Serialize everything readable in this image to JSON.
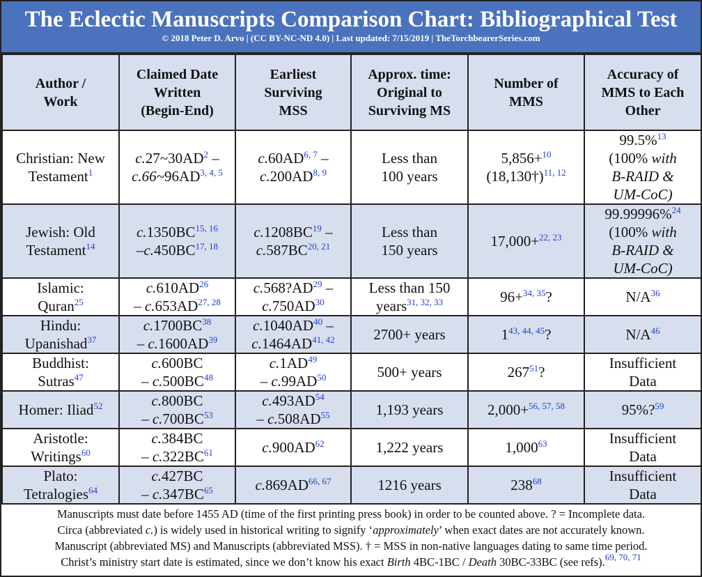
{
  "header": {
    "title": "The Eclectic Manuscripts Comparison Chart: Bibliographical Test",
    "subtitle": "© 2018 Peter D. Arvo | (CC BY-NC-ND 4.0) | Last updated: 7/15/2019 | TheTorchbearerSeries.com"
  },
  "table": {
    "columns": [
      [
        "Author /",
        "Work"
      ],
      [
        "Claimed Date",
        "Written",
        "(Begin-End)"
      ],
      [
        "Earliest",
        "Surviving",
        "MSS"
      ],
      [
        "Approx. time:",
        "Original to",
        "Surviving MS"
      ],
      [
        "Number of",
        "MMS"
      ],
      [
        "Accuracy of",
        "MMS to Each",
        "Other"
      ]
    ],
    "rows": [
      [
        [
          [
            "Christian: New"
          ],
          [
            "Testament",
            {
              "sup": "1"
            }
          ]
        ],
        [
          [
            {
              "i": "c."
            },
            "27~30AD",
            {
              "sup": "2"
            },
            " –"
          ],
          [
            {
              "i": "c.66~"
            },
            "96AD",
            {
              "sup": "3, 4, 5"
            }
          ]
        ],
        [
          [
            {
              "i": "c."
            },
            "60AD",
            {
              "sup": "6, 7"
            },
            " –"
          ],
          [
            {
              "i": "c."
            },
            "200AD",
            {
              "sup": "8, 9"
            }
          ]
        ],
        [
          [
            "Less than"
          ],
          [
            "100 years"
          ]
        ],
        [
          [
            "5,856+",
            {
              "sup": "10"
            }
          ],
          [
            "(18,130†)",
            {
              "sup": "11, 12"
            }
          ]
        ],
        [
          [
            "99.5%",
            {
              "sup": "13"
            }
          ],
          [
            "(100% ",
            {
              "i": "with"
            }
          ],
          [
            {
              "i": "B-RAID &"
            }
          ],
          [
            {
              "i": "UM-CoC)"
            }
          ]
        ]
      ],
      [
        [
          [
            "Jewish: Old"
          ],
          [
            "Testament",
            {
              "sup": "14"
            }
          ]
        ],
        [
          [
            {
              "i": "c."
            },
            "1350BC",
            {
              "sup": "15, 16"
            }
          ],
          [
            "–",
            {
              "i": "c."
            },
            "450BC",
            {
              "sup": "17, 18"
            }
          ]
        ],
        [
          [
            {
              "i": "c."
            },
            "1208BC",
            {
              "sup": "19"
            },
            " –"
          ],
          [
            {
              "i": "c."
            },
            "587BC",
            {
              "sup": "20, 21"
            }
          ]
        ],
        [
          [
            "Less than"
          ],
          [
            "150 years"
          ]
        ],
        [
          [
            "17,000+",
            {
              "sup": "22, 23"
            }
          ]
        ],
        [
          [
            "99.99996%",
            {
              "sup": "24"
            }
          ],
          [
            "(100% ",
            {
              "i": "with"
            }
          ],
          [
            {
              "i": "B-RAID &"
            }
          ],
          [
            {
              "i": "UM-CoC)"
            }
          ]
        ]
      ],
      [
        [
          [
            "Islamic:"
          ],
          [
            "Quran",
            {
              "sup": "25"
            }
          ]
        ],
        [
          [
            {
              "i": "c."
            },
            "610AD",
            {
              "sup": "26"
            }
          ],
          [
            "– ",
            {
              "i": "c."
            },
            "653AD",
            {
              "sup": "27, 28"
            }
          ]
        ],
        [
          [
            {
              "i": "c."
            },
            "568?AD",
            {
              "sup": "29"
            },
            " –"
          ],
          [
            {
              "i": "c."
            },
            "750AD",
            {
              "sup": "30"
            }
          ]
        ],
        [
          [
            "Less than 150"
          ],
          [
            "years",
            {
              "sup": "31, 32, 33"
            }
          ]
        ],
        [
          [
            "96+",
            {
              "sup": "34, 35"
            },
            "?"
          ]
        ],
        [
          [
            "N/A",
            {
              "sup": "36"
            }
          ]
        ]
      ],
      [
        [
          [
            "Hindu:"
          ],
          [
            "Upanishad",
            {
              "sup": "37"
            }
          ]
        ],
        [
          [
            {
              "i": "c."
            },
            "1700BC",
            {
              "sup": "38"
            }
          ],
          [
            "– ",
            {
              "i": "c."
            },
            "1600AD",
            {
              "sup": "39"
            }
          ]
        ],
        [
          [
            {
              "i": "c."
            },
            "1040AD",
            {
              "sup": "40"
            },
            " –"
          ],
          [
            {
              "i": "c."
            },
            "1464AD",
            {
              "sup": "41, 42"
            }
          ]
        ],
        [
          [
            "2700+ years"
          ]
        ],
        [
          [
            "1",
            {
              "sup": "43, 44, 45"
            },
            "?"
          ]
        ],
        [
          [
            "N/A",
            {
              "sup": "46"
            }
          ]
        ]
      ],
      [
        [
          [
            "Buddhist:"
          ],
          [
            "Sutras",
            {
              "sup": "47"
            }
          ]
        ],
        [
          [
            {
              "i": "c."
            },
            "600BC"
          ],
          [
            "– ",
            {
              "i": "c."
            },
            "500BC",
            {
              "sup": "48"
            }
          ]
        ],
        [
          [
            {
              "i": "c."
            },
            "1AD",
            {
              "sup": "49"
            }
          ],
          [
            "– ",
            {
              "i": "c."
            },
            "99AD",
            {
              "sup": "50"
            }
          ]
        ],
        [
          [
            "500+ years"
          ]
        ],
        [
          [
            "267",
            {
              "sup": "51"
            },
            "?"
          ]
        ],
        [
          [
            "Insufficient"
          ],
          [
            "Data"
          ]
        ]
      ],
      [
        [
          [
            "Homer: Iliad",
            {
              "sup": "52"
            }
          ]
        ],
        [
          [
            {
              "i": "c."
            },
            "800BC"
          ],
          [
            "– ",
            {
              "i": "c."
            },
            "700BC",
            {
              "sup": "53"
            }
          ]
        ],
        [
          [
            {
              "i": "c."
            },
            "493AD",
            {
              "sup": "54"
            }
          ],
          [
            "– ",
            {
              "i": "c."
            },
            "508AD",
            {
              "sup": "55"
            }
          ]
        ],
        [
          [
            "1,193 years"
          ]
        ],
        [
          [
            "2,000+",
            {
              "sup": "56, 57, 58"
            }
          ]
        ],
        [
          [
            "95%?",
            {
              "sup": "59"
            }
          ]
        ]
      ],
      [
        [
          [
            "Aristotle:"
          ],
          [
            "Writings",
            {
              "sup": "60"
            }
          ]
        ],
        [
          [
            {
              "i": "c."
            },
            "384BC"
          ],
          [
            "– ",
            {
              "i": "c."
            },
            "322BC",
            {
              "sup": "61"
            }
          ]
        ],
        [
          [
            {
              "i": "c."
            },
            "900AD",
            {
              "sup": "62"
            }
          ]
        ],
        [
          [
            "1,222 years"
          ]
        ],
        [
          [
            "1,000",
            {
              "sup": "63"
            }
          ]
        ],
        [
          [
            "Insufficient"
          ],
          [
            "Data"
          ]
        ]
      ],
      [
        [
          [
            "Plato:"
          ],
          [
            "Tetralogies",
            {
              "sup": "64"
            }
          ]
        ],
        [
          [
            {
              "i": "c."
            },
            "427BC"
          ],
          [
            "– ",
            {
              "i": "c."
            },
            "347BC",
            {
              "sup": "65"
            }
          ]
        ],
        [
          [
            {
              "i": "c."
            },
            "869AD",
            {
              "sup": "66, 67"
            }
          ]
        ],
        [
          [
            "1216 years"
          ]
        ],
        [
          [
            "238",
            {
              "sup": "68"
            }
          ]
        ],
        [
          [
            "Insufficient"
          ],
          [
            "Data"
          ]
        ]
      ]
    ]
  },
  "footer": [
    [
      "Manuscripts must date before 1455 AD (time of the first printing press book) in order to be counted above. ? = Incomplete data."
    ],
    [
      "Circa (abbreviated ",
      {
        "i": "c."
      },
      ") is widely used in historical writing to signify ‘",
      {
        "i": "approximately"
      },
      "’ when exact dates are not accurately known."
    ],
    [
      "Manuscript (abbreviated MS) and Manuscripts (abbreviated MSS). † = MSS in non-native languages dating to same time period."
    ],
    [
      "Christ’s ministry start date is estimated, since we don’t know his exact ",
      {
        "i": "Birth"
      },
      " 4BC-1BC / ",
      {
        "i": "Death"
      },
      " 30BC-33BC (see refs).",
      {
        "sup": "69, 70, 71"
      }
    ]
  ]
}
